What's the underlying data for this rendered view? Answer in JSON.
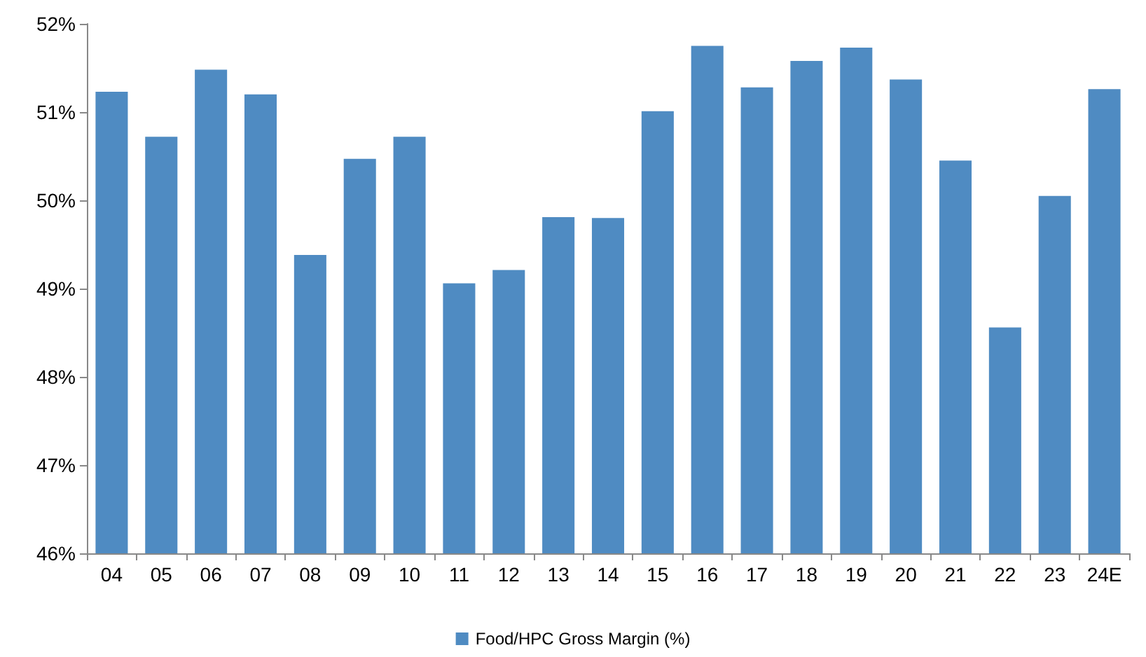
{
  "chart_data": {
    "type": "bar",
    "categories": [
      "04",
      "05",
      "06",
      "07",
      "08",
      "09",
      "10",
      "11",
      "12",
      "13",
      "14",
      "15",
      "16",
      "17",
      "18",
      "19",
      "20",
      "21",
      "22",
      "23",
      "24E"
    ],
    "series": [
      {
        "name": "Food/HPC Gross Margin (%)",
        "color": "#4f8bc2",
        "values": [
          51.23,
          50.72,
          51.48,
          51.2,
          49.38,
          50.47,
          50.72,
          49.06,
          49.21,
          49.81,
          49.8,
          51.01,
          51.75,
          51.28,
          51.58,
          51.73,
          51.37,
          50.45,
          48.56,
          50.05,
          51.26
        ]
      }
    ],
    "ylim": [
      46,
      52
    ],
    "yticks": [
      {
        "value": 46,
        "label": "46%"
      },
      {
        "value": 47,
        "label": "47%"
      },
      {
        "value": 48,
        "label": "48%"
      },
      {
        "value": 49,
        "label": "49%"
      },
      {
        "value": 50,
        "label": "50%"
      },
      {
        "value": 51,
        "label": "51%"
      },
      {
        "value": 52,
        "label": "52%"
      }
    ],
    "grid": false,
    "legend": "bottom"
  }
}
